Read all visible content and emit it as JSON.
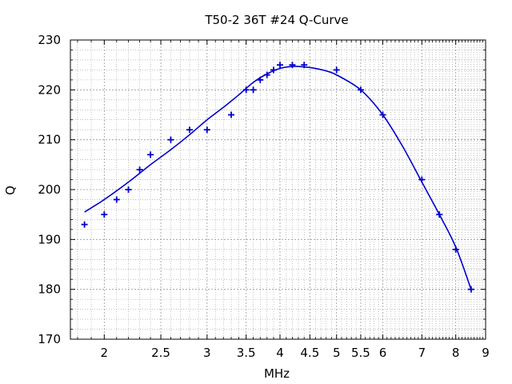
{
  "chart_data": {
    "type": "scatter",
    "title": "T50-2 36T #24 Q-Curve",
    "xlabel": "MHz",
    "ylabel": "Q",
    "x_scale": "log",
    "xlim": [
      1.75,
      9
    ],
    "ylim": [
      170,
      230
    ],
    "grid": true,
    "x_ticks": [
      2,
      2.5,
      3,
      3.5,
      4,
      4.5,
      5,
      5.5,
      6,
      7,
      8,
      9
    ],
    "x_tick_labels": [
      "2",
      "2.5",
      "3",
      "3.5",
      "4",
      "4.5",
      "5",
      "5.5",
      "6",
      "7",
      "8",
      "9"
    ],
    "y_ticks": [
      170,
      180,
      190,
      200,
      210,
      220,
      230
    ],
    "y_tick_labels": [
      "170",
      "180",
      "190",
      "200",
      "210",
      "220",
      "230"
    ],
    "colors": {
      "series": "#0000cc",
      "grid": "#9a9a9a",
      "axis": "#000000"
    },
    "series": [
      {
        "kind": "points",
        "marker": "plus",
        "x": [
          1.85,
          2.0,
          2.1,
          2.2,
          2.3,
          2.4,
          2.6,
          2.8,
          3.0,
          3.3,
          3.5,
          3.6,
          3.7,
          3.8,
          3.9,
          4.0,
          4.2,
          4.4,
          5.0,
          5.5,
          6.0,
          7.0,
          7.5,
          8.0,
          8.5
        ],
        "y": [
          193,
          195,
          198,
          200,
          204,
          207,
          210,
          212,
          212,
          215,
          220,
          220,
          222,
          223,
          224,
          225,
          225,
          225,
          224,
          220,
          215,
          202,
          195,
          188,
          180
        ]
      },
      {
        "kind": "line",
        "x": [
          1.85,
          2.0,
          2.2,
          2.4,
          2.6,
          2.8,
          3.0,
          3.2,
          3.4,
          3.6,
          3.8,
          4.0,
          4.2,
          4.4,
          4.6,
          4.8,
          5.0,
          5.5,
          6.0,
          6.5,
          7.0,
          7.5,
          8.0,
          8.5
        ],
        "y": [
          195.5,
          198.0,
          201.5,
          205.0,
          208.0,
          211.0,
          214.0,
          216.5,
          219.0,
          221.5,
          223.2,
          224.3,
          224.7,
          224.6,
          224.3,
          223.8,
          223.0,
          220.0,
          215.0,
          208.5,
          201.5,
          195.0,
          188.5,
          180.0
        ]
      }
    ]
  }
}
